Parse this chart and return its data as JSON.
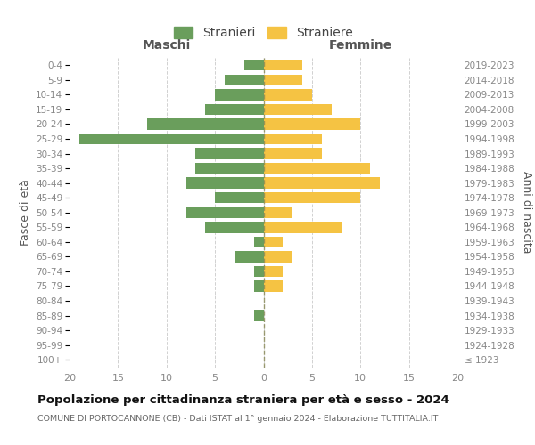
{
  "age_groups": [
    "100+",
    "95-99",
    "90-94",
    "85-89",
    "80-84",
    "75-79",
    "70-74",
    "65-69",
    "60-64",
    "55-59",
    "50-54",
    "45-49",
    "40-44",
    "35-39",
    "30-34",
    "25-29",
    "20-24",
    "15-19",
    "10-14",
    "5-9",
    "0-4"
  ],
  "birth_years": [
    "≤ 1923",
    "1924-1928",
    "1929-1933",
    "1934-1938",
    "1939-1943",
    "1944-1948",
    "1949-1953",
    "1954-1958",
    "1959-1963",
    "1964-1968",
    "1969-1973",
    "1974-1978",
    "1979-1983",
    "1984-1988",
    "1989-1993",
    "1994-1998",
    "1999-2003",
    "2004-2008",
    "2009-2013",
    "2014-2018",
    "2019-2023"
  ],
  "males": [
    0,
    0,
    0,
    1,
    0,
    1,
    1,
    3,
    1,
    6,
    8,
    5,
    8,
    7,
    7,
    19,
    12,
    6,
    5,
    4,
    2
  ],
  "females": [
    0,
    0,
    0,
    0,
    0,
    2,
    2,
    3,
    2,
    8,
    3,
    10,
    12,
    11,
    6,
    6,
    10,
    7,
    5,
    4,
    4
  ],
  "male_color": "#6a9e5c",
  "female_color": "#f5c343",
  "background_color": "#ffffff",
  "grid_color": "#cccccc",
  "title": "Popolazione per cittadinanza straniera per età e sesso - 2024",
  "subtitle": "COMUNE DI PORTOCANNONE (CB) - Dati ISTAT al 1° gennaio 2024 - Elaborazione TUTTITALIA.IT",
  "xlabel_left": "Maschi",
  "xlabel_right": "Femmine",
  "ylabel_left": "Fasce di età",
  "ylabel_right": "Anni di nascita",
  "legend_male": "Stranieri",
  "legend_female": "Straniere",
  "xlim": 20
}
